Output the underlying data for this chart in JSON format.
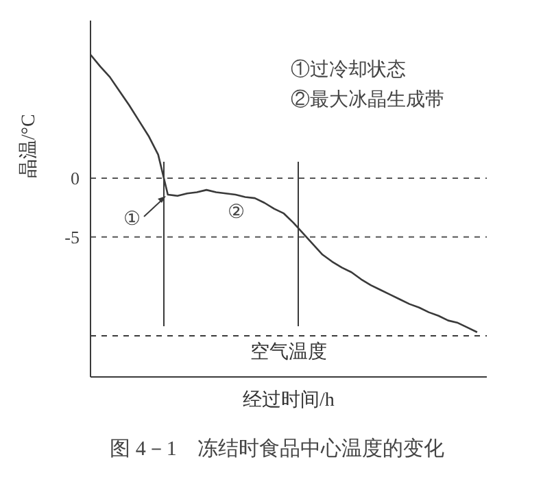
{
  "chart_data": {
    "type": "line",
    "xlabel": "经过时间/h",
    "ylabel": "晶温/°C",
    "categories": [
      null,
      null,
      null,
      null,
      null,
      null,
      null,
      null,
      null,
      null,
      null,
      null,
      null,
      null,
      null,
      null,
      null,
      null,
      null,
      null,
      null,
      null,
      null,
      null,
      null,
      null,
      null,
      null,
      null,
      null,
      null,
      null,
      null,
      null,
      null,
      null,
      null,
      null,
      null,
      null,
      null
    ],
    "series": [
      {
        "color": "#3a3a3a",
        "values": [
          10.5,
          9.5,
          8.6,
          7.4,
          6.2,
          4.9,
          3.6,
          2.0,
          -1.4,
          -1.5,
          -1.3,
          -1.2,
          -1.0,
          -1.2,
          -1.3,
          -1.4,
          -1.6,
          -1.7,
          -2.1,
          -2.6,
          -3.0,
          -3.8,
          -4.7,
          -5.6,
          -6.5,
          -7.1,
          -7.6,
          -8.0,
          -8.6,
          -9.1,
          -9.5,
          -9.9,
          -10.3,
          -10.7,
          -11.0,
          -11.4,
          -11.7,
          -12.1,
          -12.3,
          -12.7,
          -13.1
        ]
      }
    ],
    "ylim": [
      -16.9,
      13.4
    ],
    "yticks": [
      0,
      -5
    ],
    "grid": "y",
    "tick_labels": "y",
    "marker": "none",
    "line_style": "solid",
    "ref_lines": [
      {
        "axis": "y",
        "value": -13.4,
        "label": "空气温度",
        "line_style": "dashed"
      }
    ],
    "annotations": [
      "①过冷却状态",
      "②最大冰晶生成带",
      "①",
      "②",
      "图 4－1　冻结时食品中心温度的变化"
    ]
  }
}
